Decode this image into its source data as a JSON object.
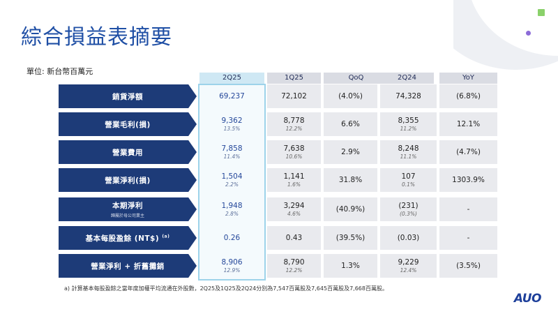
{
  "title": "綜合損益表摘要",
  "unit": "單位: 新台幣百萬元",
  "columns": [
    "2Q25",
    "1Q25",
    "QoQ",
    "2Q24",
    "YoY"
  ],
  "rows": [
    {
      "label": "銷貨淨額",
      "sub": "",
      "sup": "",
      "cells": [
        {
          "v": "69,237",
          "p": ""
        },
        {
          "v": "72,102",
          "p": ""
        },
        {
          "v": "(4.0%)",
          "p": ""
        },
        {
          "v": "74,328",
          "p": ""
        },
        {
          "v": "(6.8%)",
          "p": ""
        }
      ]
    },
    {
      "label": "營業毛利(損)",
      "sub": "",
      "sup": "",
      "cells": [
        {
          "v": "9,362",
          "p": "13.5%"
        },
        {
          "v": "8,778",
          "p": "12.2%"
        },
        {
          "v": "6.6%",
          "p": ""
        },
        {
          "v": "8,355",
          "p": "11.2%"
        },
        {
          "v": "12.1%",
          "p": ""
        }
      ]
    },
    {
      "label": "營業費用",
      "sub": "",
      "sup": "",
      "cells": [
        {
          "v": "7,858",
          "p": "11.4%"
        },
        {
          "v": "7,638",
          "p": "10.6%"
        },
        {
          "v": "2.9%",
          "p": ""
        },
        {
          "v": "8,248",
          "p": "11.1%"
        },
        {
          "v": "(4.7%)",
          "p": ""
        }
      ]
    },
    {
      "label": "營業淨利(損)",
      "sub": "",
      "sup": "",
      "cells": [
        {
          "v": "1,504",
          "p": "2.2%"
        },
        {
          "v": "1,141",
          "p": "1.6%"
        },
        {
          "v": "31.8%",
          "p": ""
        },
        {
          "v": "107",
          "p": "0.1%"
        },
        {
          "v": "1303.9%",
          "p": ""
        }
      ]
    },
    {
      "label": "本期淨利",
      "sub": "歸屬於母公司業主",
      "sup": "",
      "cells": [
        {
          "v": "1,948",
          "p": "2.8%"
        },
        {
          "v": "3,294",
          "p": "4.6%"
        },
        {
          "v": "(40.9%)",
          "p": ""
        },
        {
          "v": "(231)",
          "p": "(0.3%)"
        },
        {
          "v": "-",
          "p": ""
        }
      ]
    },
    {
      "label": "基本每股盈餘 (NT$)",
      "sub": "",
      "sup": "(a)",
      "cells": [
        {
          "v": "0.26",
          "p": ""
        },
        {
          "v": "0.43",
          "p": ""
        },
        {
          "v": "(39.5%)",
          "p": ""
        },
        {
          "v": "(0.03)",
          "p": ""
        },
        {
          "v": "-",
          "p": ""
        }
      ]
    },
    {
      "label": "營業淨利 + 折舊攤銷",
      "sub": "",
      "sup": "",
      "cells": [
        {
          "v": "8,906",
          "p": "12.9%"
        },
        {
          "v": "8,790",
          "p": "12.2%"
        },
        {
          "v": "1.3%",
          "p": ""
        },
        {
          "v": "9,229",
          "p": "12.4%"
        },
        {
          "v": "(3.5%)",
          "p": ""
        }
      ]
    }
  ],
  "footnote": "a)  計算基本每股盈餘之當年度加權平均流通在外股數，2Q25及1Q25及2Q24分別為7,547百萬股及7,645百萬股及7,668百萬股。",
  "logo": "AUO",
  "colors": {
    "title": "#1f4fa5",
    "label_bg": "#1d3b78",
    "highlight_border": "#9dd3ea",
    "header_highlight": "#cfe8f4"
  }
}
